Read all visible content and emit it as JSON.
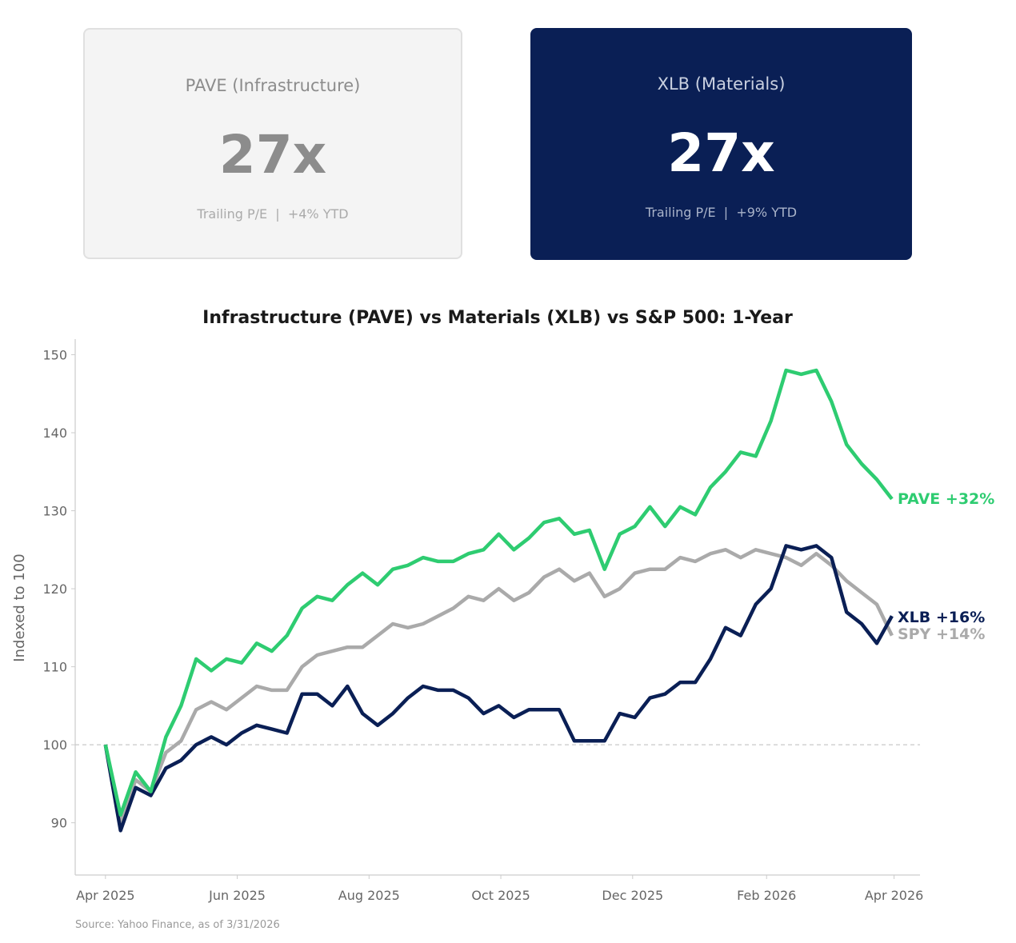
{
  "cards": [
    {
      "title": "PAVE (Infrastructure)",
      "value": "27x",
      "subtitle": "Trailing P/E  |  +4% YTD",
      "style": "light"
    },
    {
      "title": "XLB (Materials)",
      "value": "27x",
      "subtitle": "Trailing P/E  |  +9% YTD",
      "style": "dark"
    }
  ],
  "source": "Source: Yahoo Finance, as of 3/31/2026",
  "chart_data": {
    "type": "line",
    "title": "Infrastructure (PAVE) vs Materials (XLB) vs S&P 500: 1-Year",
    "xlabel": "",
    "ylabel": "Indexed to 100",
    "ylim": [
      83.3,
      152
    ],
    "xlim": [
      "2025-03-18",
      "2026-04-13"
    ],
    "yticks": [
      90,
      100,
      110,
      120,
      130,
      140,
      150
    ],
    "xticks": [
      {
        "date": "2025-04-01",
        "label": "Apr 2025"
      },
      {
        "date": "2025-06-01",
        "label": "Jun 2025"
      },
      {
        "date": "2025-08-01",
        "label": "Aug 2025"
      },
      {
        "date": "2025-10-01",
        "label": "Oct 2025"
      },
      {
        "date": "2025-12-01",
        "label": "Dec 2025"
      },
      {
        "date": "2026-02-01",
        "label": "Feb 2026"
      },
      {
        "date": "2026-04-01",
        "label": "Apr 2026"
      }
    ],
    "reference_line": 100,
    "grid": false,
    "x": [
      "2025-04-01",
      "2025-04-08",
      "2025-04-15",
      "2025-04-22",
      "2025-04-29",
      "2025-05-06",
      "2025-05-13",
      "2025-05-20",
      "2025-05-27",
      "2025-06-03",
      "2025-06-10",
      "2025-06-17",
      "2025-06-24",
      "2025-07-01",
      "2025-07-08",
      "2025-07-15",
      "2025-07-22",
      "2025-07-29",
      "2025-08-05",
      "2025-08-12",
      "2025-08-19",
      "2025-08-26",
      "2025-09-02",
      "2025-09-09",
      "2025-09-16",
      "2025-09-23",
      "2025-09-30",
      "2025-10-07",
      "2025-10-14",
      "2025-10-21",
      "2025-10-28",
      "2025-11-04",
      "2025-11-11",
      "2025-11-18",
      "2025-11-25",
      "2025-12-02",
      "2025-12-09",
      "2025-12-16",
      "2025-12-23",
      "2025-12-30",
      "2026-01-06",
      "2026-01-13",
      "2026-01-20",
      "2026-01-27",
      "2026-02-03",
      "2026-02-10",
      "2026-02-17",
      "2026-02-24",
      "2026-03-03",
      "2026-03-10",
      "2026-03-17",
      "2026-03-24",
      "2026-03-31"
    ],
    "series": [
      {
        "name": "SPY",
        "end_label": "SPY +14%",
        "color": "#aaaaaa",
        "values": [
          100,
          90,
          95.5,
          94,
          99,
          100.5,
          104.5,
          105.5,
          104.5,
          106,
          107.5,
          107,
          107,
          110,
          111.5,
          112,
          112.5,
          112.5,
          114,
          115.5,
          115,
          115.5,
          116.5,
          117.5,
          119,
          118.5,
          120,
          118.5,
          119.5,
          121.5,
          122.5,
          121,
          122,
          119,
          120,
          122,
          122.5,
          122.5,
          124,
          123.5,
          124.5,
          125,
          124,
          125,
          124.5,
          124,
          123,
          124.5,
          123,
          121,
          119.5,
          118,
          114
        ]
      },
      {
        "name": "XLB",
        "end_label": "XLB +16%",
        "color": "#0a1f55",
        "values": [
          100,
          89,
          94.5,
          93.5,
          97,
          98,
          100,
          101,
          100,
          101.5,
          102.5,
          102,
          101.5,
          106.5,
          106.5,
          105,
          107.5,
          104,
          102.5,
          104,
          106,
          107.5,
          107,
          107,
          106,
          104,
          105,
          103.5,
          104.5,
          104.5,
          104.5,
          100.5,
          100.5,
          100.5,
          104,
          103.5,
          106,
          106.5,
          108,
          108,
          111,
          115,
          114,
          118,
          120,
          125.5,
          125,
          125.5,
          124,
          117,
          115.5,
          113,
          116.5
        ]
      },
      {
        "name": "PAVE",
        "end_label": "PAVE +32%",
        "color": "#2ecc71",
        "values": [
          100,
          91,
          96.5,
          94,
          101,
          105,
          111,
          109.5,
          111,
          110.5,
          113,
          112,
          114,
          117.5,
          119,
          118.5,
          120.5,
          122,
          120.5,
          122.5,
          123,
          124,
          123.5,
          123.5,
          124.5,
          125,
          127,
          125,
          126.5,
          128.5,
          129,
          127,
          127.5,
          122.5,
          127,
          128,
          130.5,
          128,
          130.5,
          129.5,
          133,
          135,
          137.5,
          137,
          141.5,
          148,
          147.5,
          148,
          144,
          138.5,
          136,
          134,
          131.5
        ]
      }
    ]
  }
}
